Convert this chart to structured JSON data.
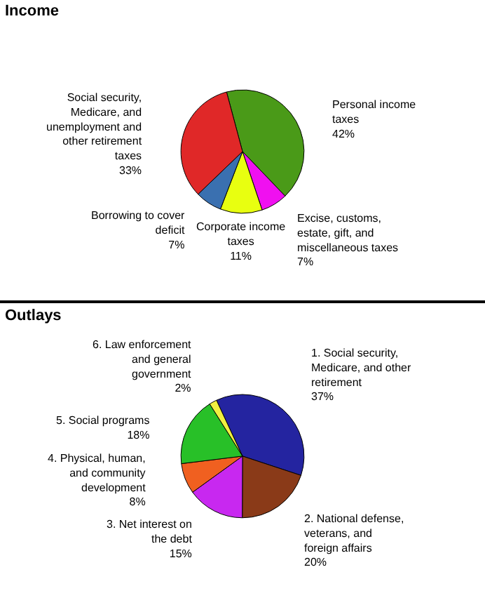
{
  "chart_data": [
    {
      "type": "pie",
      "title": "Income",
      "categories": [
        "Personal income taxes",
        "Excise, customs, estate, gift, and miscellaneous taxes",
        "Corporate income taxes",
        "Borrowing to cover deficit",
        "Social security, Medicare, and unemployment and other retirement taxes"
      ],
      "values": [
        42,
        7,
        11,
        7,
        33
      ],
      "colors": [
        "#4a9a18",
        "#f010f0",
        "#e8ff10",
        "#3a70b0",
        "#e02828"
      ],
      "value_labels": [
        "42%",
        "7%",
        "11%",
        "7%",
        "33%"
      ]
    },
    {
      "type": "pie",
      "title": "Outlays",
      "categories": [
        "1. Social security, Medicare, and other retirement",
        "2. National defense, veterans, and foreign affairs",
        "3. Net interest on the debt",
        "4. Physical, human, and community development",
        "5. Social programs",
        "6. Law enforcement and general government"
      ],
      "values": [
        37,
        20,
        15,
        8,
        18,
        2
      ],
      "colors": [
        "#2424a0",
        "#8a3a18",
        "#c828f0",
        "#f06020",
        "#28c028",
        "#f0f040"
      ],
      "value_labels": [
        "37%",
        "20%",
        "15%",
        "8%",
        "18%",
        "2%"
      ]
    }
  ]
}
